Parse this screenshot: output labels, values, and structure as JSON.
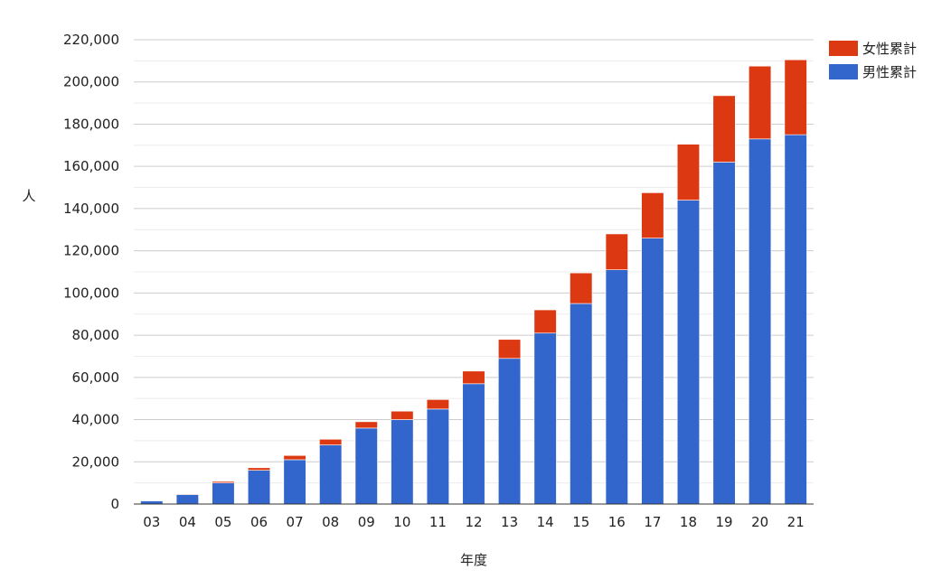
{
  "chart_data": {
    "type": "bar",
    "stacked": true,
    "title": "",
    "xlabel": "年度",
    "ylabel": "人",
    "ylim": [
      0,
      220000
    ],
    "y_ticks": [
      "0",
      "20,000",
      "40,000",
      "60,000",
      "80,000",
      "100,000",
      "120,000",
      "140,000",
      "160,000",
      "180,000",
      "200,000",
      "220,000"
    ],
    "grid": true,
    "legend_position": "top-right",
    "categories": [
      "03",
      "04",
      "05",
      "06",
      "07",
      "08",
      "09",
      "10",
      "11",
      "12",
      "13",
      "14",
      "15",
      "16",
      "17",
      "18",
      "19",
      "20",
      "21"
    ],
    "series": [
      {
        "name": "男性累計",
        "color": "#3366cc",
        "values": [
          1500,
          4500,
          10000,
          16000,
          21000,
          28000,
          36000,
          40000,
          45000,
          57000,
          69000,
          81000,
          95000,
          111000,
          126000,
          144000,
          162000,
          173000,
          175000
        ]
      },
      {
        "name": "女性累計",
        "color": "#dc3912",
        "values": [
          100,
          300,
          700,
          1200,
          2000,
          2700,
          3000,
          4000,
          4500,
          6000,
          9000,
          11000,
          14500,
          17000,
          21500,
          26500,
          31500,
          34500,
          35500
        ]
      }
    ]
  },
  "legend": {
    "female_label": "女性累計",
    "male_label": "男性累計",
    "female_color": "#dc3912",
    "male_color": "#3366cc"
  }
}
